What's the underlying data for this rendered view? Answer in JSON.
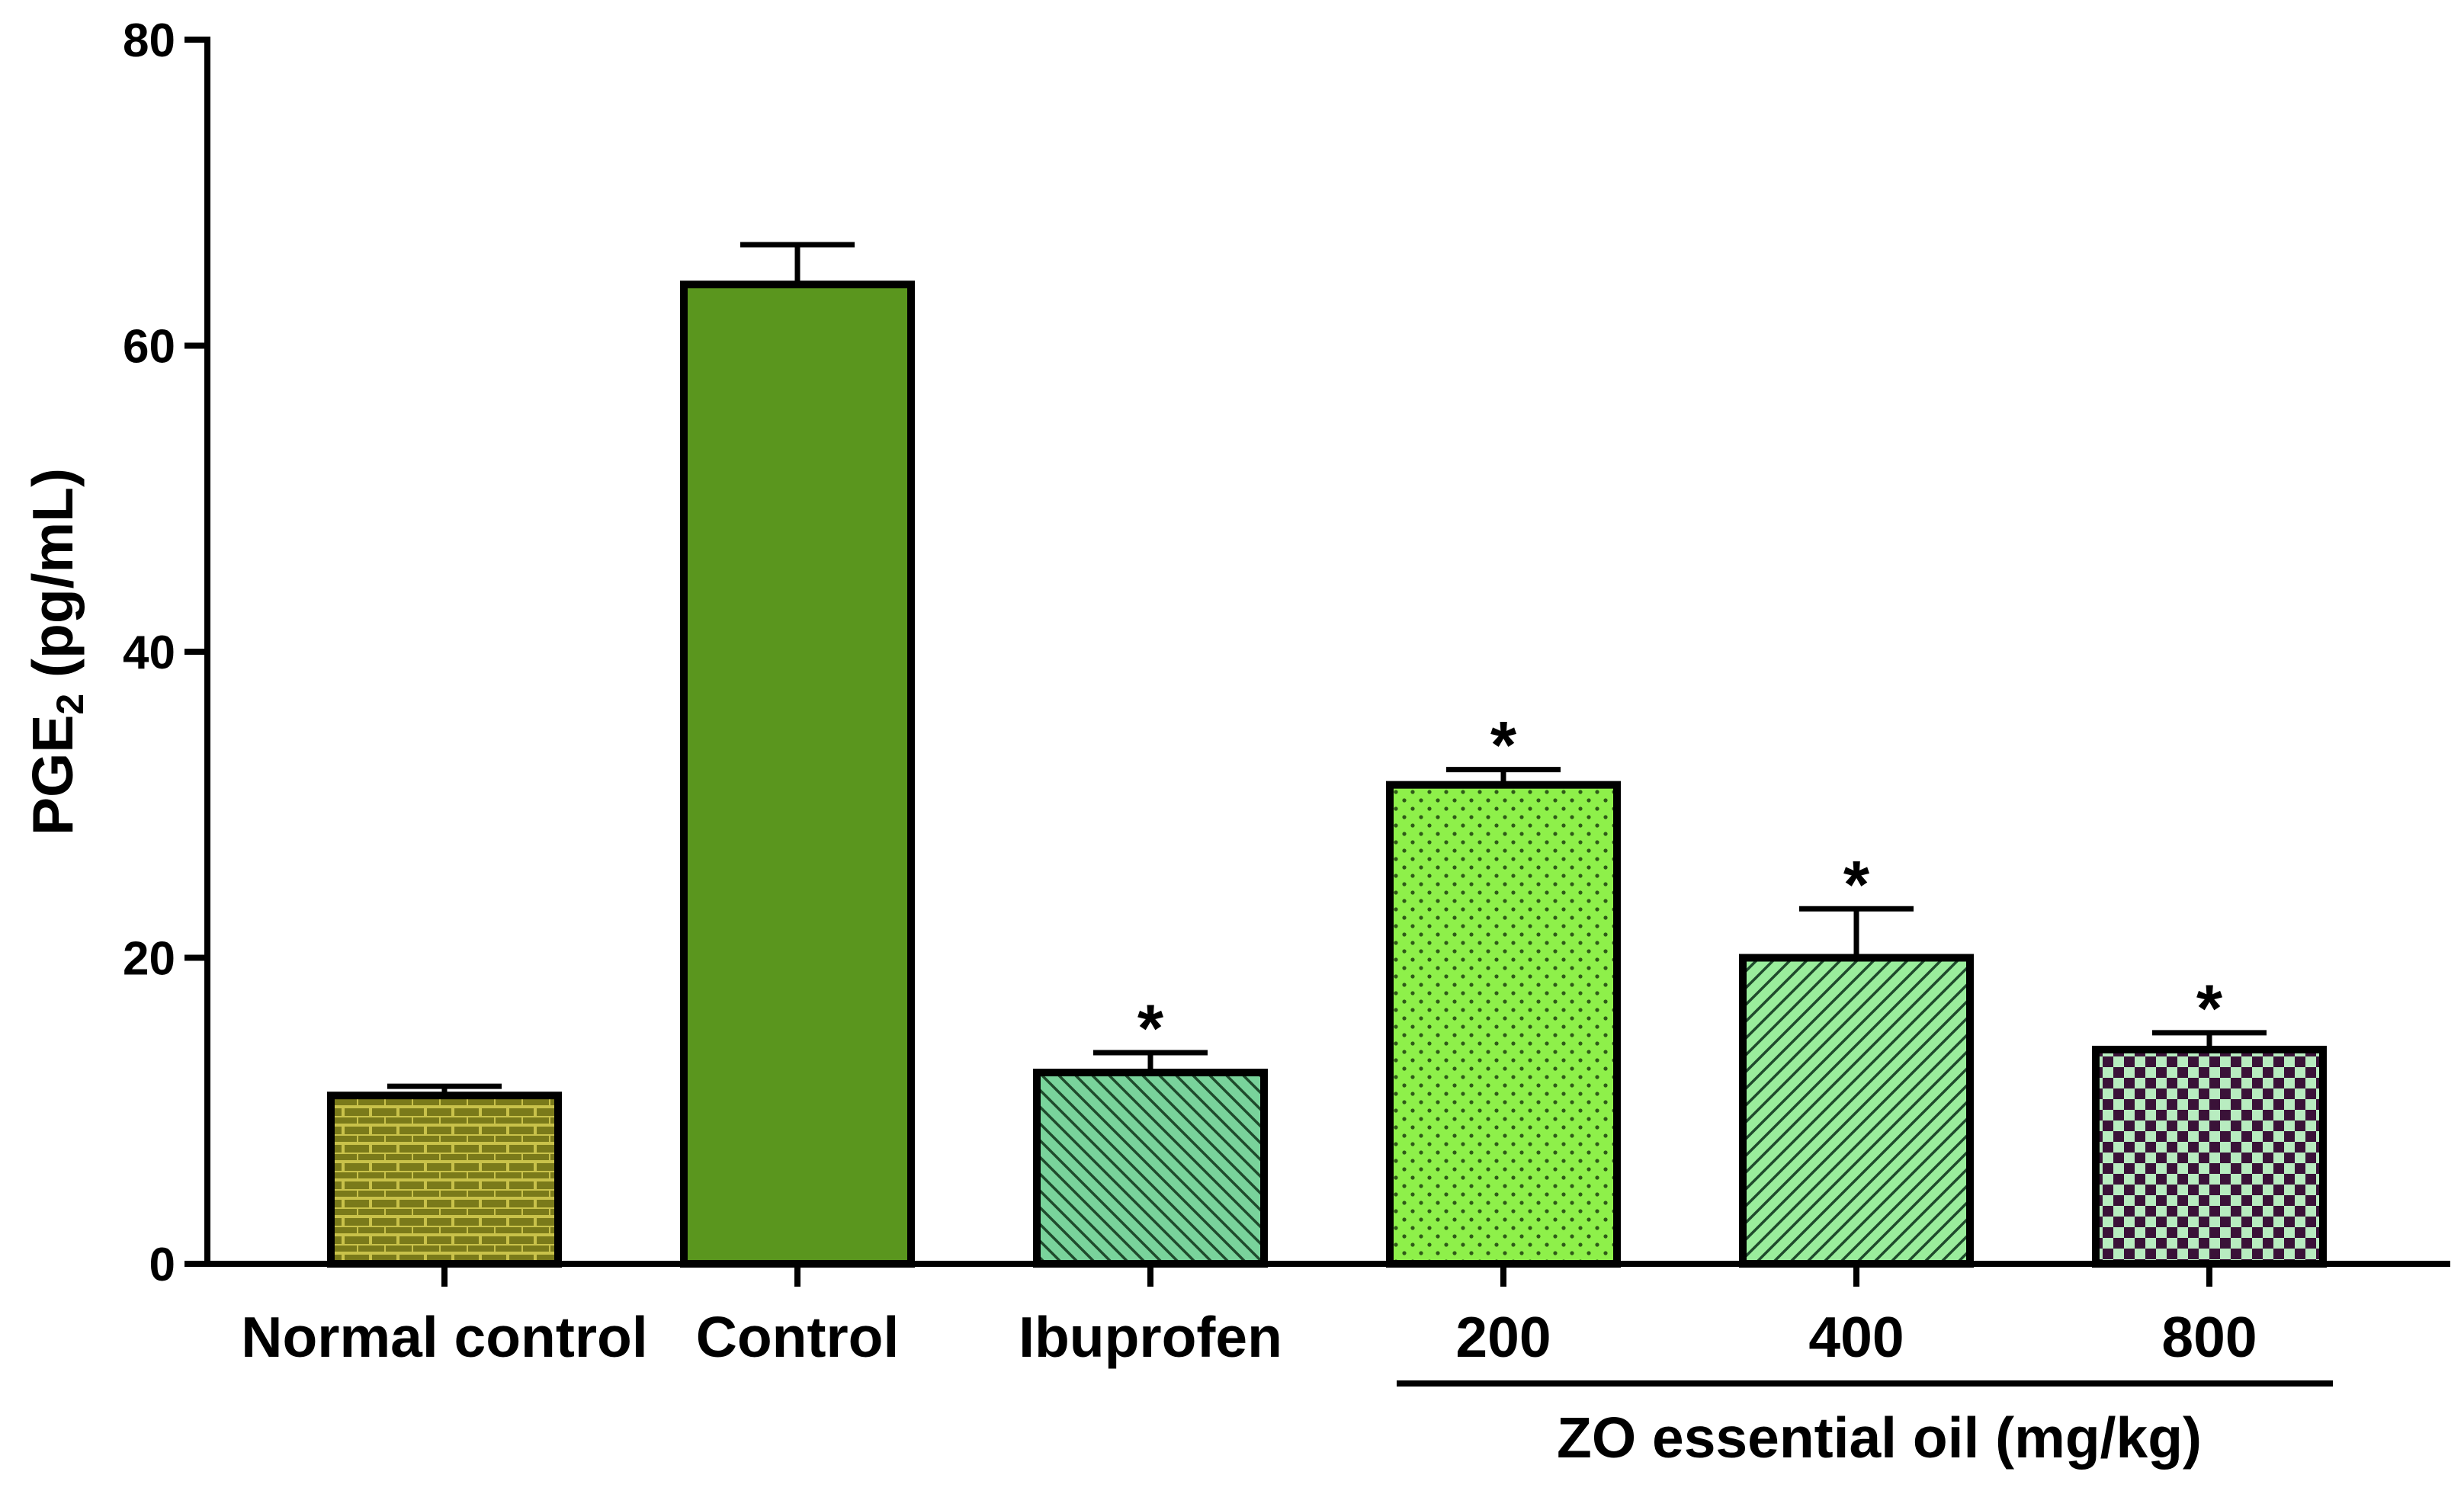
{
  "chart_data": {
    "type": "bar",
    "title": "",
    "ylabel_main": "PGE",
    "ylabel_subscript": "2",
    "ylabel_units": " (pg/mL)",
    "xlabel": "",
    "ylim": [
      0,
      80
    ],
    "yticks": [
      0,
      20,
      40,
      60,
      80
    ],
    "grid": false,
    "categories": [
      "Normal control",
      "Control",
      "Ibuprofen",
      "200",
      "400",
      "800"
    ],
    "values": [
      11,
      64,
      12.5,
      31.3,
      20,
      14
    ],
    "errors": [
      0.6,
      2.6,
      1.3,
      1.0,
      3.2,
      1.1
    ],
    "significance": [
      "",
      "",
      "*",
      "*",
      "*",
      "*"
    ],
    "group": {
      "label": "ZO essential oil (mg/kg)",
      "start_index": 3,
      "end_index": 5
    },
    "bar_styles": [
      {
        "pattern": "bricks",
        "fill": "#7a7a1a",
        "ink": "#c9c24a"
      },
      {
        "pattern": "solid",
        "fill": "#5a961e",
        "ink": "#5a961e"
      },
      {
        "pattern": "diag-back",
        "fill": "#79d39b",
        "ink": "#1f4a2c"
      },
      {
        "pattern": "dots",
        "fill": "#8ef04a",
        "ink": "#2f5a18"
      },
      {
        "pattern": "diag-fwd",
        "fill": "#9aed9c",
        "ink": "#1f4a2c"
      },
      {
        "pattern": "checker",
        "fill": "#b8ecc0",
        "ink": "#3a1238"
      }
    ]
  }
}
